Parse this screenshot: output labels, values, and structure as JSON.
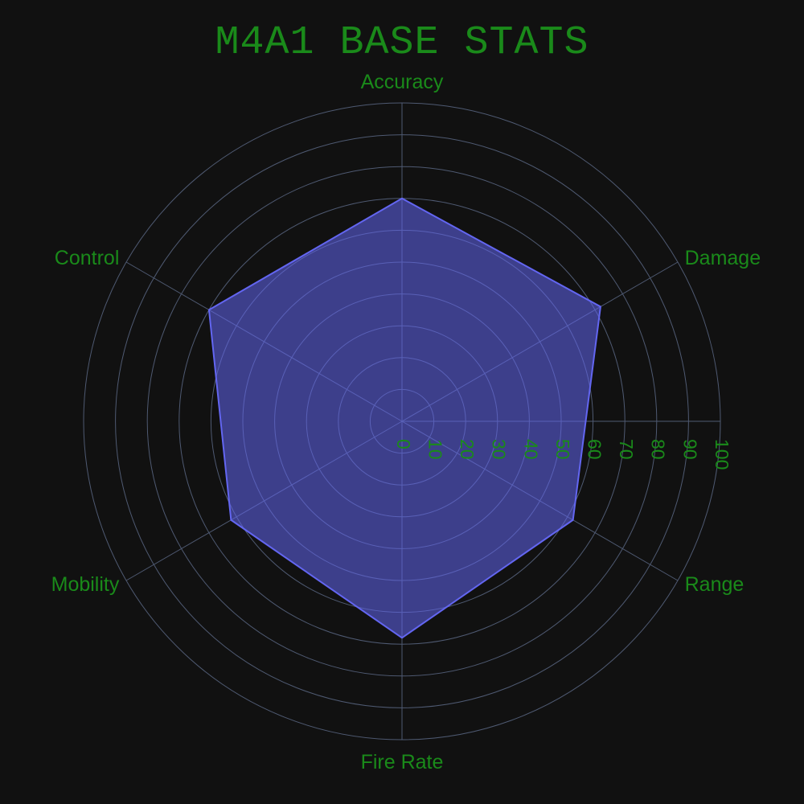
{
  "chart_data": {
    "type": "radar",
    "title": "M4A1 BASE STATS",
    "categories": [
      "Accuracy",
      "Damage",
      "Range",
      "Fire Rate",
      "Mobility",
      "Control"
    ],
    "series": [
      {
        "values": [
          70,
          72,
          62,
          68,
          62,
          70
        ]
      }
    ],
    "radial_range": [
      0,
      100
    ],
    "radial_ticks": [
      0,
      10,
      20,
      30,
      40,
      50,
      60,
      70,
      80,
      90,
      100
    ],
    "grid": true,
    "legend": "none",
    "colors": {
      "background": "#111111",
      "text": "#1a8a1a",
      "grid": "#4f5a72",
      "series_fill": "rgba(99,102,241,0.55)",
      "series_line": "#6366f1"
    }
  }
}
